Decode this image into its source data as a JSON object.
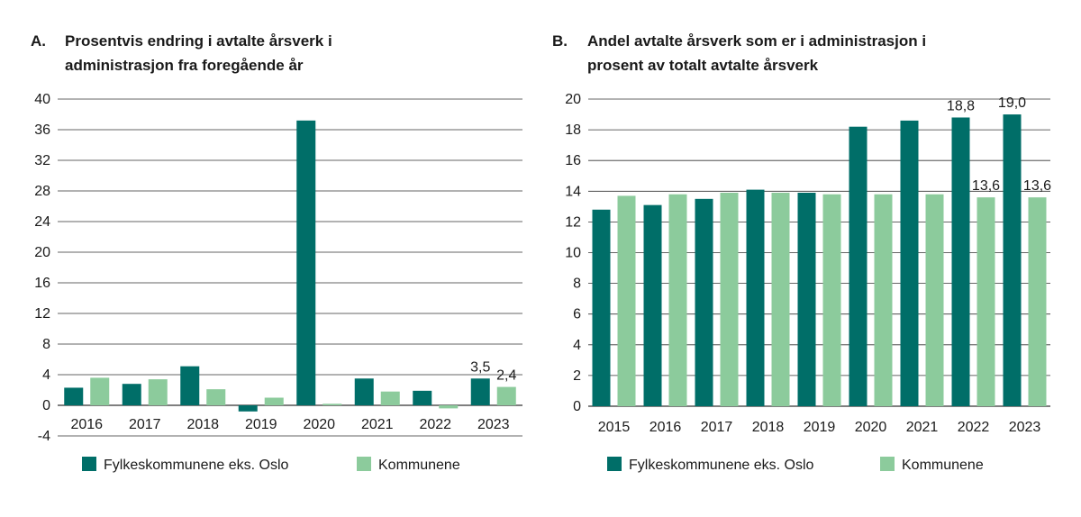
{
  "colors": {
    "fylke": "#006e68",
    "kommune": "#8ccb9c",
    "grid": "#333333"
  },
  "chart_data": [
    {
      "type": "bar",
      "panel": "A.",
      "title_lines": [
        "Prosentvis endring i avtalte årsverk i",
        "administrasjon fra foregående år"
      ],
      "categories": [
        "2016",
        "2017",
        "2018",
        "2019",
        "2020",
        "2021",
        "2022",
        "2023"
      ],
      "ylim": [
        -4,
        40
      ],
      "yticks": [
        "40",
        "36",
        "32",
        "28",
        "24",
        "20",
        "16",
        "12",
        "8",
        "4",
        "0",
        "-4"
      ],
      "grid": true,
      "legend_placement": "bottom",
      "series": [
        {
          "name": "Fylkeskommunene eks. Oslo",
          "values": [
            2.3,
            2.8,
            5.1,
            -0.8,
            37.2,
            3.5,
            1.9,
            3.5
          ]
        },
        {
          "name": "Kommunene",
          "values": [
            3.6,
            3.4,
            2.1,
            1.0,
            0.2,
            1.8,
            -0.4,
            2.4
          ]
        }
      ],
      "data_labels": [
        {
          "series": 0,
          "index": 7,
          "text": "3,5"
        },
        {
          "series": 1,
          "index": 7,
          "text": "2,4"
        }
      ]
    },
    {
      "type": "bar",
      "panel": "B.",
      "title_lines": [
        "Andel avtalte årsverk som er i administrasjon i",
        "prosent av totalt avtalte årsverk"
      ],
      "categories": [
        "2015",
        "2016",
        "2017",
        "2018",
        "2019",
        "2020",
        "2021",
        "2022",
        "2023"
      ],
      "ylim": [
        0,
        20
      ],
      "yticks": [
        "20",
        "18",
        "16",
        "14",
        "12",
        "10",
        "8",
        "6",
        "4",
        "2",
        "0"
      ],
      "grid": true,
      "legend_placement": "bottom",
      "series": [
        {
          "name": "Fylkeskommunene eks. Oslo",
          "values": [
            12.8,
            13.1,
            13.5,
            14.1,
            13.9,
            18.2,
            18.6,
            18.8,
            19.0
          ]
        },
        {
          "name": "Kommunene",
          "values": [
            13.7,
            13.8,
            13.9,
            13.9,
            13.8,
            13.8,
            13.8,
            13.6,
            13.6
          ]
        }
      ],
      "data_labels": [
        {
          "series": 0,
          "index": 7,
          "text": "18,8"
        },
        {
          "series": 0,
          "index": 8,
          "text": "19,0"
        },
        {
          "series": 1,
          "index": 7,
          "text": "13,6"
        },
        {
          "series": 1,
          "index": 8,
          "text": "13,6"
        }
      ]
    }
  ]
}
